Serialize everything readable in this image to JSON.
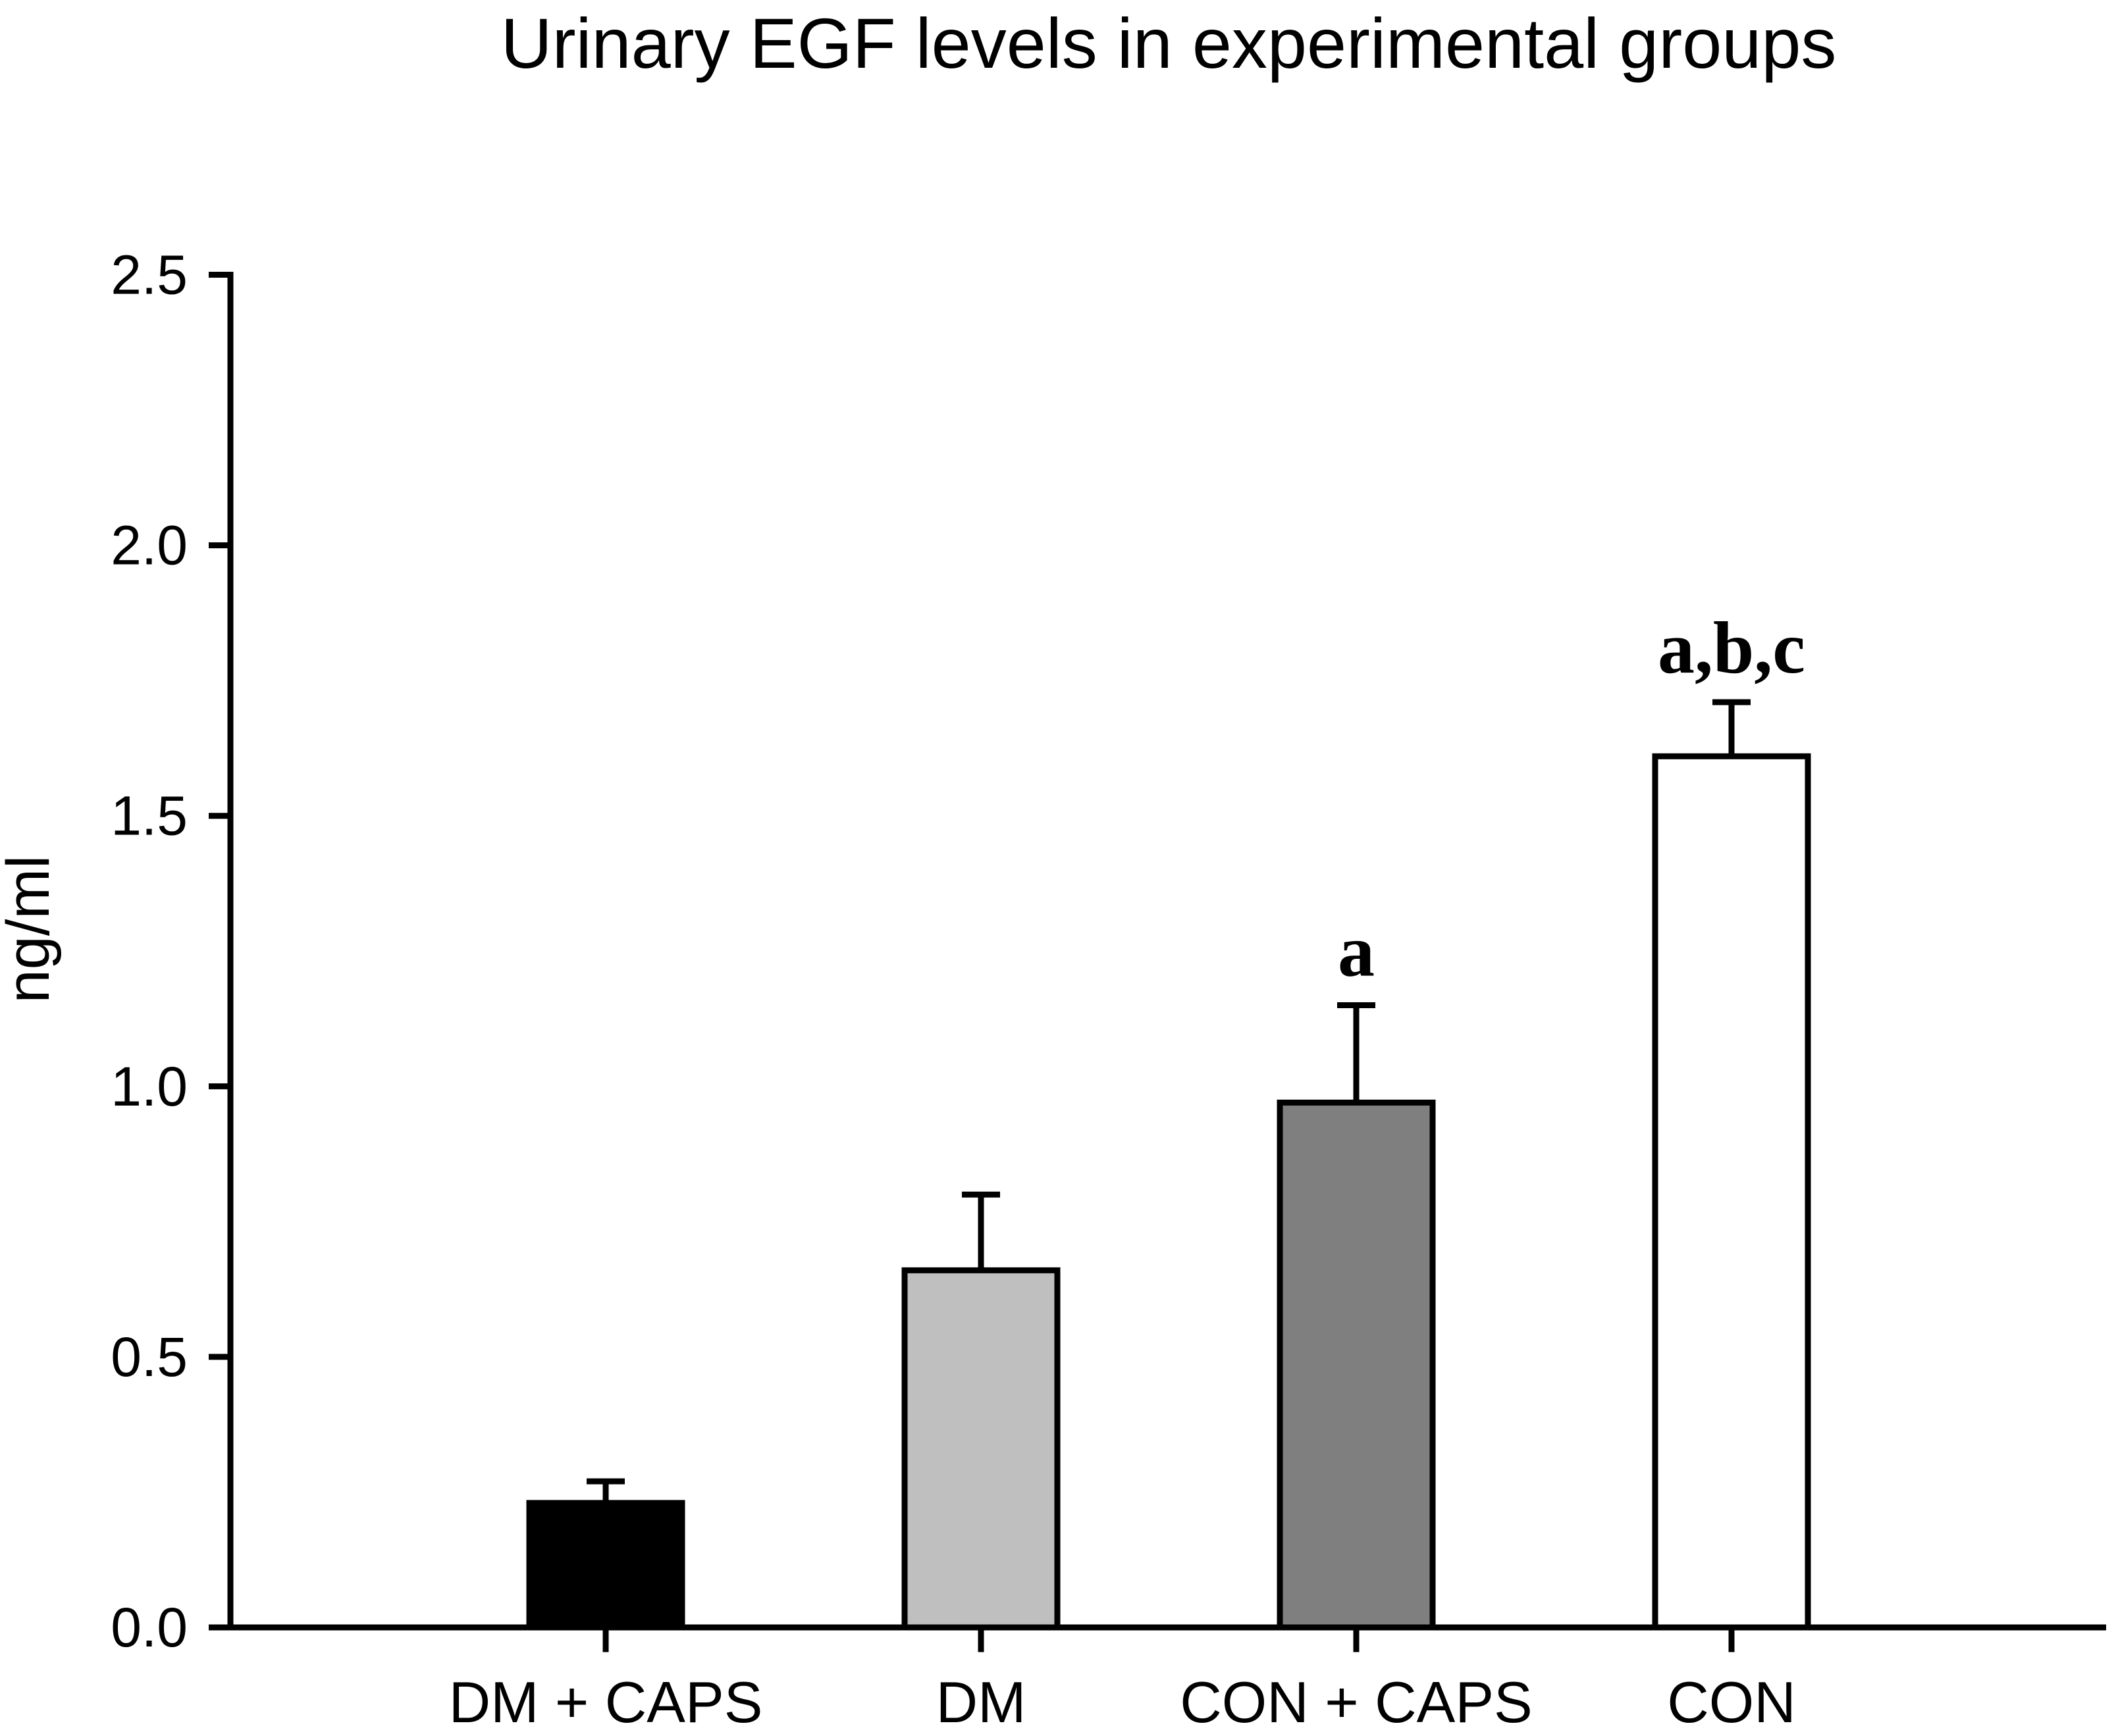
{
  "page": {
    "background_color": "#ffffff",
    "text_color": "#000000"
  },
  "chart_data": {
    "type": "bar",
    "title": "Urinary EGF levels in experimental groups",
    "xlabel": "",
    "ylabel": "ng/ml",
    "categories": [
      "DM + CAPS",
      "DM",
      "CON + CAPS",
      "CON"
    ],
    "values": [
      0.23,
      0.66,
      0.97,
      1.61
    ],
    "errors_plus": [
      0.04,
      0.14,
      0.18,
      0.1
    ],
    "annotations": [
      "",
      "",
      "a",
      "a,b,c"
    ],
    "bar_fills": [
      "#000000",
      "#bfbfbf",
      "#7f7f7f",
      "#ffffff"
    ],
    "bar_stroke_color": "#000000",
    "axis_color": "#000000",
    "ylim": [
      0,
      2.5
    ],
    "ytick_labels": [
      "0.0",
      "0.5",
      "1.0",
      "1.5",
      "2.0",
      "2.5"
    ],
    "ytick_values": [
      0.0,
      0.5,
      1.0,
      1.5,
      2.0,
      2.5
    ],
    "grid": false,
    "legend": "none",
    "error_bar_direction": "up"
  }
}
